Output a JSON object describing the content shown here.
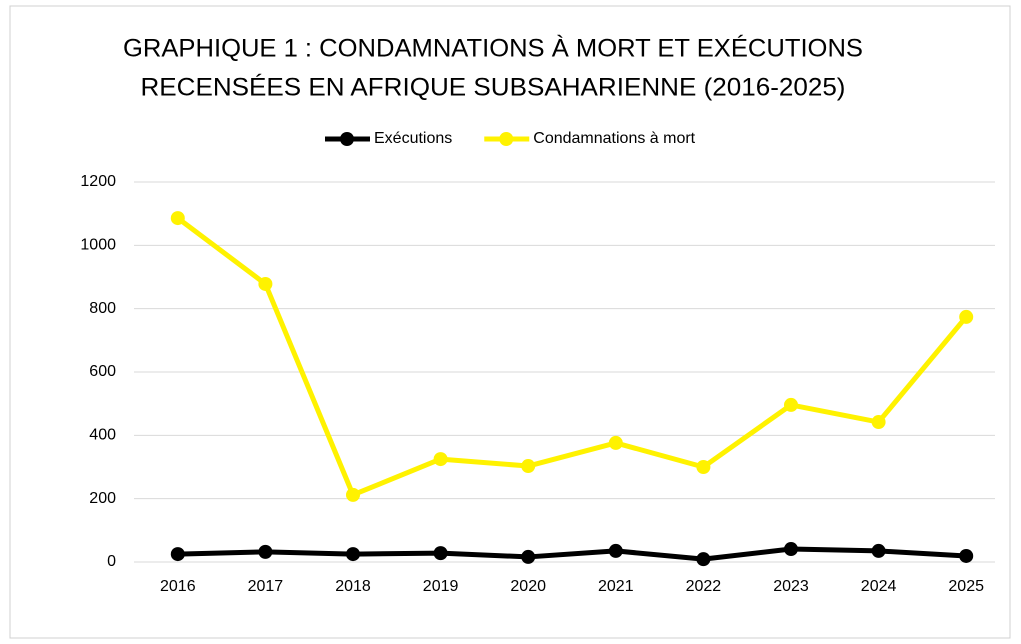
{
  "chart_data": {
    "type": "line",
    "title": [
      "GRAPHIQUE 1 : CONDAMNATIONS À MORT ET EXÉCUTIONS",
      "RECENSÉES EN AFRIQUE SUBSAHARIENNE (2016-2025)"
    ],
    "categories": [
      "2016",
      "2017",
      "2018",
      "2019",
      "2020",
      "2021",
      "2022",
      "2023",
      "2024",
      "2025"
    ],
    "series": [
      {
        "name": "Exécutions",
        "color": "#000000",
        "values": [
          25,
          32,
          25,
          28,
          16,
          35,
          9,
          41,
          35,
          19
        ]
      },
      {
        "name": "Condamnations à mort",
        "color": "#fff200",
        "values": [
          1086,
          878,
          212,
          325,
          303,
          376,
          300,
          496,
          442,
          774
        ]
      }
    ],
    "ylim": [
      0,
      1200
    ],
    "yticks": [
      0,
      200,
      400,
      600,
      800,
      1000,
      1200
    ],
    "grid": true,
    "legend": "top"
  }
}
